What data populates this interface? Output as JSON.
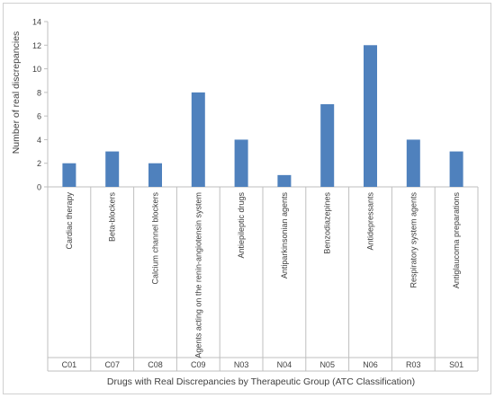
{
  "chart_data": {
    "type": "bar",
    "xlabel": "Drugs with Real Discrepancies by Therapeutic Group (ATC Classification)",
    "ylabel": "Number of real discrepancies",
    "ylim": [
      0,
      14
    ],
    "yticks": [
      0,
      2,
      4,
      6,
      8,
      10,
      12,
      14
    ],
    "grid": false,
    "legend": "none",
    "bar_color": "#4f81bd",
    "categories": [
      {
        "name": "Cardiac therapy",
        "code": "C01"
      },
      {
        "name": "Beta-blockers",
        "code": "C07"
      },
      {
        "name": "Calcium channel blockers",
        "code": "C08"
      },
      {
        "name": "Agents acting on the renin-angiotensin system",
        "code": "C09"
      },
      {
        "name": "Antiepileptic drugs",
        "code": "N03"
      },
      {
        "name": "Antiparkinsonian agents",
        "code": "N04"
      },
      {
        "name": "Benzodiazepines",
        "code": "N05"
      },
      {
        "name": "Antidepressants",
        "code": "N06"
      },
      {
        "name": "Respiratory system agents",
        "code": "R03"
      },
      {
        "name": "Antiglaucoma preparations",
        "code": "S01"
      }
    ],
    "values": [
      2,
      3,
      2,
      8,
      4,
      1,
      7,
      12,
      4,
      3
    ]
  }
}
